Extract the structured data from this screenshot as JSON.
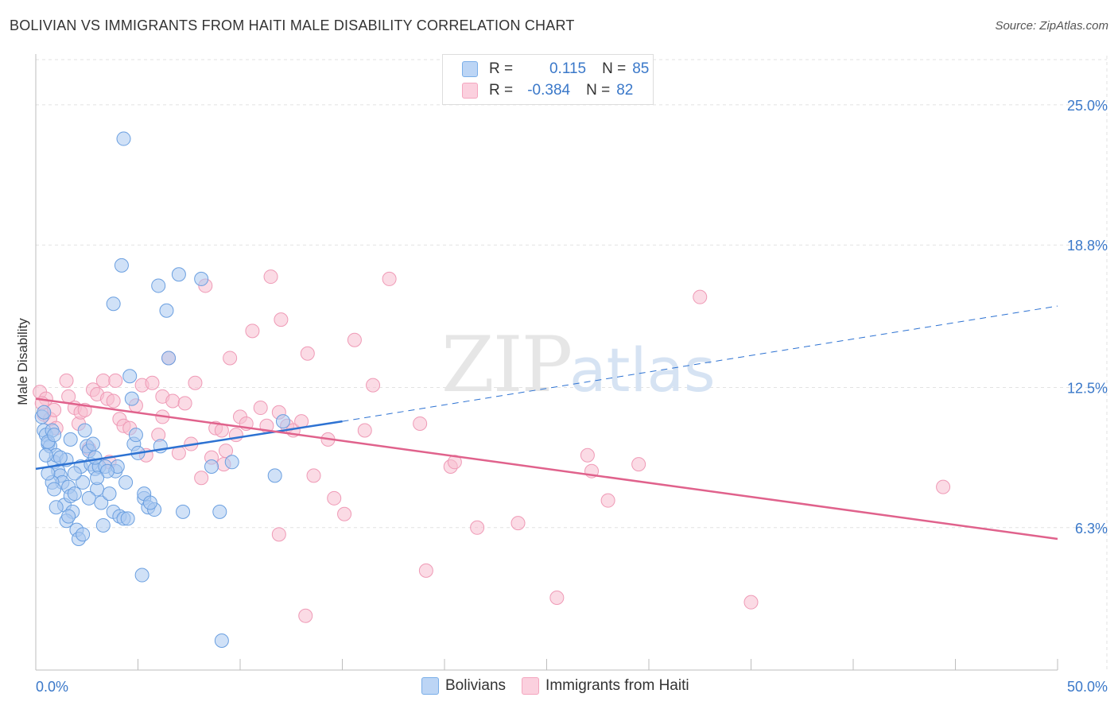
{
  "title": "BOLIVIAN VS IMMIGRANTS FROM HAITI MALE DISABILITY CORRELATION CHART",
  "source": "Source: ZipAtlas.com",
  "watermark": {
    "zip": "ZIP",
    "atlas": "atlas"
  },
  "colors": {
    "blue": "#7aaee8",
    "blue_line": "#2d72d2",
    "pink": "#f4a6bf",
    "pink_line": "#e0628c",
    "tick_label": "#3a78c9",
    "grid": "#e2e2e2"
  },
  "stats": {
    "r_label": "R =",
    "n_label": "N =",
    "blue": {
      "r": "0.115",
      "n": "85"
    },
    "pink": {
      "r": "-0.384",
      "n": "82"
    }
  },
  "legend": {
    "blue": "Bolivians",
    "pink": "Immigrants from Haiti"
  },
  "chart_data": {
    "type": "scatter",
    "title": "BOLIVIAN VS IMMIGRANTS FROM HAITI MALE DISABILITY CORRELATION CHART",
    "xlabel": "",
    "ylabel": "Male Disability",
    "xlim": [
      0,
      50
    ],
    "ylim": [
      0,
      27
    ],
    "y_ticks": [
      6.3,
      12.5,
      18.8,
      25.0
    ],
    "y_tick_labels": [
      "6.3%",
      "12.5%",
      "18.8%",
      "25.0%"
    ],
    "x_tick_labels": [
      "0.0%",
      "50.0%"
    ],
    "grid": true,
    "legend_position": "bottom",
    "series": [
      {
        "name": "Bolivians",
        "color": "#7aaee8",
        "trend": {
          "x": [
            0,
            15
          ],
          "y": [
            8.9,
            11.0
          ],
          "dashed_to": [
            50,
            16.1
          ]
        },
        "points": [
          [
            0.3,
            11.2
          ],
          [
            0.4,
            10.6
          ],
          [
            0.5,
            10.4
          ],
          [
            0.6,
            10.0
          ],
          [
            0.7,
            9.9
          ],
          [
            0.8,
            10.6
          ],
          [
            0.6,
            10.1
          ],
          [
            0.9,
            9.2
          ],
          [
            1.0,
            9.5
          ],
          [
            1.1,
            8.8
          ],
          [
            1.2,
            8.6
          ],
          [
            1.3,
            8.3
          ],
          [
            0.8,
            8.3
          ],
          [
            0.9,
            8.0
          ],
          [
            1.5,
            9.3
          ],
          [
            1.6,
            8.1
          ],
          [
            1.4,
            7.3
          ],
          [
            1.7,
            7.7
          ],
          [
            1.8,
            7.0
          ],
          [
            1.5,
            6.6
          ],
          [
            1.6,
            6.8
          ],
          [
            2.0,
            6.2
          ],
          [
            2.1,
            5.8
          ],
          [
            2.2,
            9.0
          ],
          [
            2.3,
            8.3
          ],
          [
            2.5,
            9.9
          ],
          [
            2.4,
            10.6
          ],
          [
            2.6,
            9.7
          ],
          [
            2.7,
            9.1
          ],
          [
            2.9,
            8.9
          ],
          [
            3.0,
            8.0
          ],
          [
            3.1,
            9.0
          ],
          [
            3.2,
            7.4
          ],
          [
            3.3,
            6.4
          ],
          [
            3.4,
            9.0
          ],
          [
            3.6,
            7.8
          ],
          [
            3.8,
            7.0
          ],
          [
            3.9,
            8.8
          ],
          [
            4.0,
            9.0
          ],
          [
            4.1,
            6.8
          ],
          [
            4.3,
            6.7
          ],
          [
            4.5,
            6.7
          ],
          [
            4.4,
            8.3
          ],
          [
            4.6,
            13.0
          ],
          [
            4.7,
            12.0
          ],
          [
            4.8,
            10.0
          ],
          [
            5.0,
            9.6
          ],
          [
            5.2,
            4.2
          ],
          [
            5.3,
            7.6
          ],
          [
            5.5,
            7.2
          ],
          [
            5.3,
            7.8
          ],
          [
            6.1,
            9.9
          ],
          [
            5.8,
            7.1
          ],
          [
            6.5,
            13.8
          ],
          [
            6.4,
            15.9
          ],
          [
            6.0,
            17.0
          ],
          [
            7.0,
            17.5
          ],
          [
            7.2,
            7.0
          ],
          [
            8.1,
            17.3
          ],
          [
            8.6,
            9.0
          ],
          [
            9.0,
            7.0
          ],
          [
            9.1,
            1.3
          ],
          [
            9.6,
            9.2
          ],
          [
            11.7,
            8.6
          ],
          [
            12.1,
            11.0
          ],
          [
            4.2,
            17.9
          ],
          [
            3.8,
            16.2
          ],
          [
            4.3,
            23.5
          ],
          [
            0.6,
            8.7
          ],
          [
            1.9,
            8.7
          ],
          [
            2.3,
            6.0
          ],
          [
            3.5,
            8.8
          ],
          [
            2.8,
            10.0
          ],
          [
            1.2,
            9.4
          ],
          [
            0.5,
            9.5
          ],
          [
            1.0,
            7.2
          ],
          [
            1.9,
            7.8
          ],
          [
            2.6,
            7.6
          ],
          [
            3.0,
            8.5
          ],
          [
            4.9,
            10.4
          ],
          [
            5.6,
            7.4
          ],
          [
            0.4,
            11.4
          ],
          [
            0.9,
            10.4
          ],
          [
            1.7,
            10.2
          ],
          [
            2.9,
            9.4
          ]
        ]
      },
      {
        "name": "Immigrants from Haiti",
        "color": "#f4a6bf",
        "trend": {
          "x": [
            0,
            50
          ],
          "y": [
            12.0,
            5.8
          ]
        },
        "points": [
          [
            0.2,
            12.3
          ],
          [
            0.4,
            11.3
          ],
          [
            0.5,
            12.0
          ],
          [
            0.7,
            11.1
          ],
          [
            0.9,
            11.5
          ],
          [
            1.0,
            10.7
          ],
          [
            1.5,
            12.8
          ],
          [
            1.6,
            12.1
          ],
          [
            1.9,
            11.6
          ],
          [
            2.1,
            10.9
          ],
          [
            2.2,
            11.4
          ],
          [
            2.6,
            9.8
          ],
          [
            2.8,
            12.4
          ],
          [
            3.0,
            12.2
          ],
          [
            3.3,
            12.8
          ],
          [
            3.5,
            12.0
          ],
          [
            3.8,
            11.9
          ],
          [
            3.9,
            12.8
          ],
          [
            4.1,
            11.1
          ],
          [
            4.3,
            10.8
          ],
          [
            4.6,
            10.7
          ],
          [
            4.9,
            11.7
          ],
          [
            5.2,
            12.6
          ],
          [
            5.4,
            9.5
          ],
          [
            5.7,
            12.7
          ],
          [
            6.0,
            10.4
          ],
          [
            6.2,
            12.1
          ],
          [
            6.5,
            13.8
          ],
          [
            6.7,
            11.9
          ],
          [
            7.0,
            9.6
          ],
          [
            7.3,
            11.8
          ],
          [
            7.6,
            10.0
          ],
          [
            7.8,
            12.7
          ],
          [
            8.1,
            8.5
          ],
          [
            8.3,
            17.0
          ],
          [
            8.6,
            9.4
          ],
          [
            8.8,
            10.7
          ],
          [
            9.1,
            10.6
          ],
          [
            9.3,
            9.7
          ],
          [
            9.5,
            13.8
          ],
          [
            9.8,
            10.4
          ],
          [
            10.0,
            11.2
          ],
          [
            10.3,
            10.9
          ],
          [
            10.6,
            15.0
          ],
          [
            11.0,
            11.6
          ],
          [
            11.3,
            10.8
          ],
          [
            11.5,
            17.4
          ],
          [
            11.9,
            11.4
          ],
          [
            12.0,
            15.5
          ],
          [
            12.3,
            10.8
          ],
          [
            12.6,
            10.6
          ],
          [
            13.0,
            11.0
          ],
          [
            13.3,
            14.0
          ],
          [
            13.6,
            8.6
          ],
          [
            14.3,
            10.2
          ],
          [
            14.6,
            7.6
          ],
          [
            15.1,
            6.9
          ],
          [
            15.6,
            14.6
          ],
          [
            16.1,
            10.6
          ],
          [
            16.5,
            12.6
          ],
          [
            17.3,
            17.3
          ],
          [
            18.8,
            10.9
          ],
          [
            19.1,
            4.4
          ],
          [
            20.3,
            9.0
          ],
          [
            20.5,
            9.2
          ],
          [
            21.6,
            6.3
          ],
          [
            23.6,
            6.5
          ],
          [
            25.5,
            3.2
          ],
          [
            27.0,
            9.5
          ],
          [
            27.2,
            8.8
          ],
          [
            28.0,
            7.5
          ],
          [
            29.5,
            9.1
          ],
          [
            32.5,
            16.5
          ],
          [
            35.0,
            3.0
          ],
          [
            44.4,
            8.1
          ],
          [
            2.4,
            11.5
          ],
          [
            6.2,
            11.2
          ],
          [
            3.6,
            9.2
          ],
          [
            9.2,
            9.1
          ],
          [
            11.9,
            6.0
          ],
          [
            13.2,
            2.4
          ],
          [
            0.3,
            11.8
          ]
        ]
      }
    ]
  }
}
